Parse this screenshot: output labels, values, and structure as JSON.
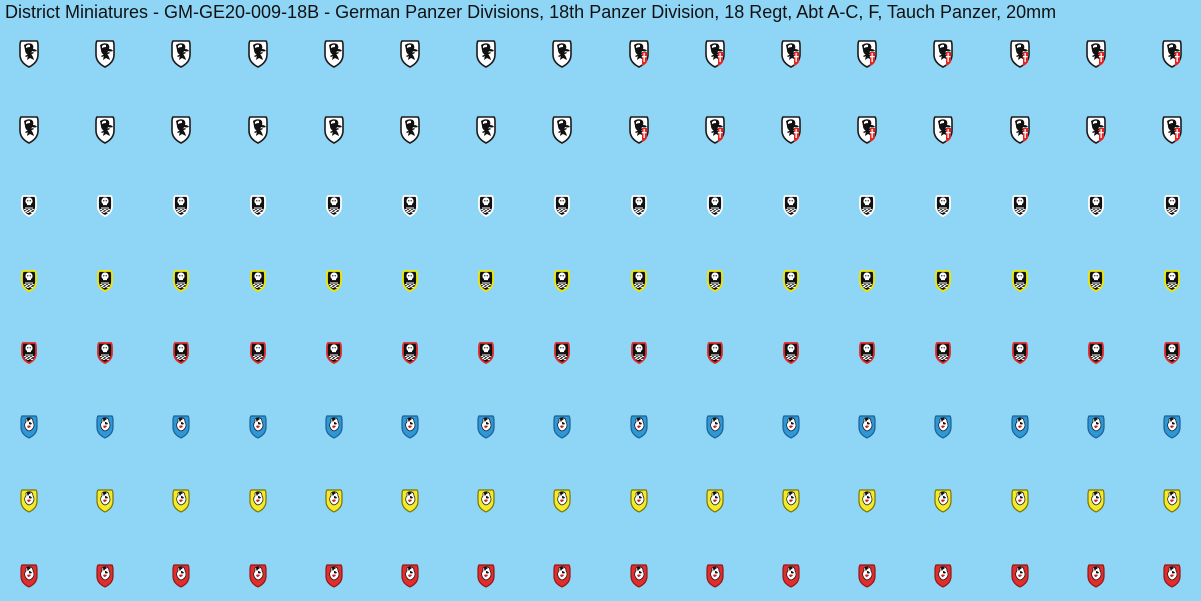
{
  "sheet": {
    "title": "District Miniatures - GM-GE20-009-18B - German Panzer Divisions, 18th Panzer Division, 18 Regt, Abt A-C, F, Tauch Panzer, 20mm",
    "background_color": "#8fd5f5"
  },
  "decal_sheet": {
    "columns_per_row": 16,
    "rows": [
      {
        "name": "knight-shield-row-1",
        "icon": "knight-shield-icon",
        "variant": "knight",
        "fill": "#ffffff",
        "border": "#1b1b1b",
        "red_cross_from_column": 9
      },
      {
        "name": "knight-shield-row-2",
        "icon": "knight-shield-icon",
        "variant": "knight",
        "fill": "#ffffff",
        "border": "#1b1b1b",
        "red_cross_from_column": 9
      },
      {
        "name": "skull-shield-white-border-row",
        "icon": "skull-shield-icon",
        "variant": "skull",
        "fill": "#101010",
        "border": "#ffffff"
      },
      {
        "name": "skull-shield-yellow-border-row",
        "icon": "skull-shield-icon",
        "variant": "skull",
        "fill": "#101010",
        "border": "#f2e600"
      },
      {
        "name": "skull-shield-red-border-row",
        "icon": "skull-shield-icon",
        "variant": "skull",
        "fill": "#101010",
        "border": "#e02a2a"
      },
      {
        "name": "bulldog-shield-blue-row",
        "icon": "bulldog-shield-icon",
        "variant": "bulldog",
        "fill": "#2f97d6",
        "border": "#1a5f93"
      },
      {
        "name": "bulldog-shield-yellow-row",
        "icon": "bulldog-shield-icon",
        "variant": "bulldog",
        "fill": "#f3ea2c",
        "border": "#7d7400"
      },
      {
        "name": "bulldog-shield-red-row",
        "icon": "bulldog-shield-icon",
        "variant": "bulldog",
        "fill": "#e02d2d",
        "border": "#8f1717"
      }
    ]
  }
}
